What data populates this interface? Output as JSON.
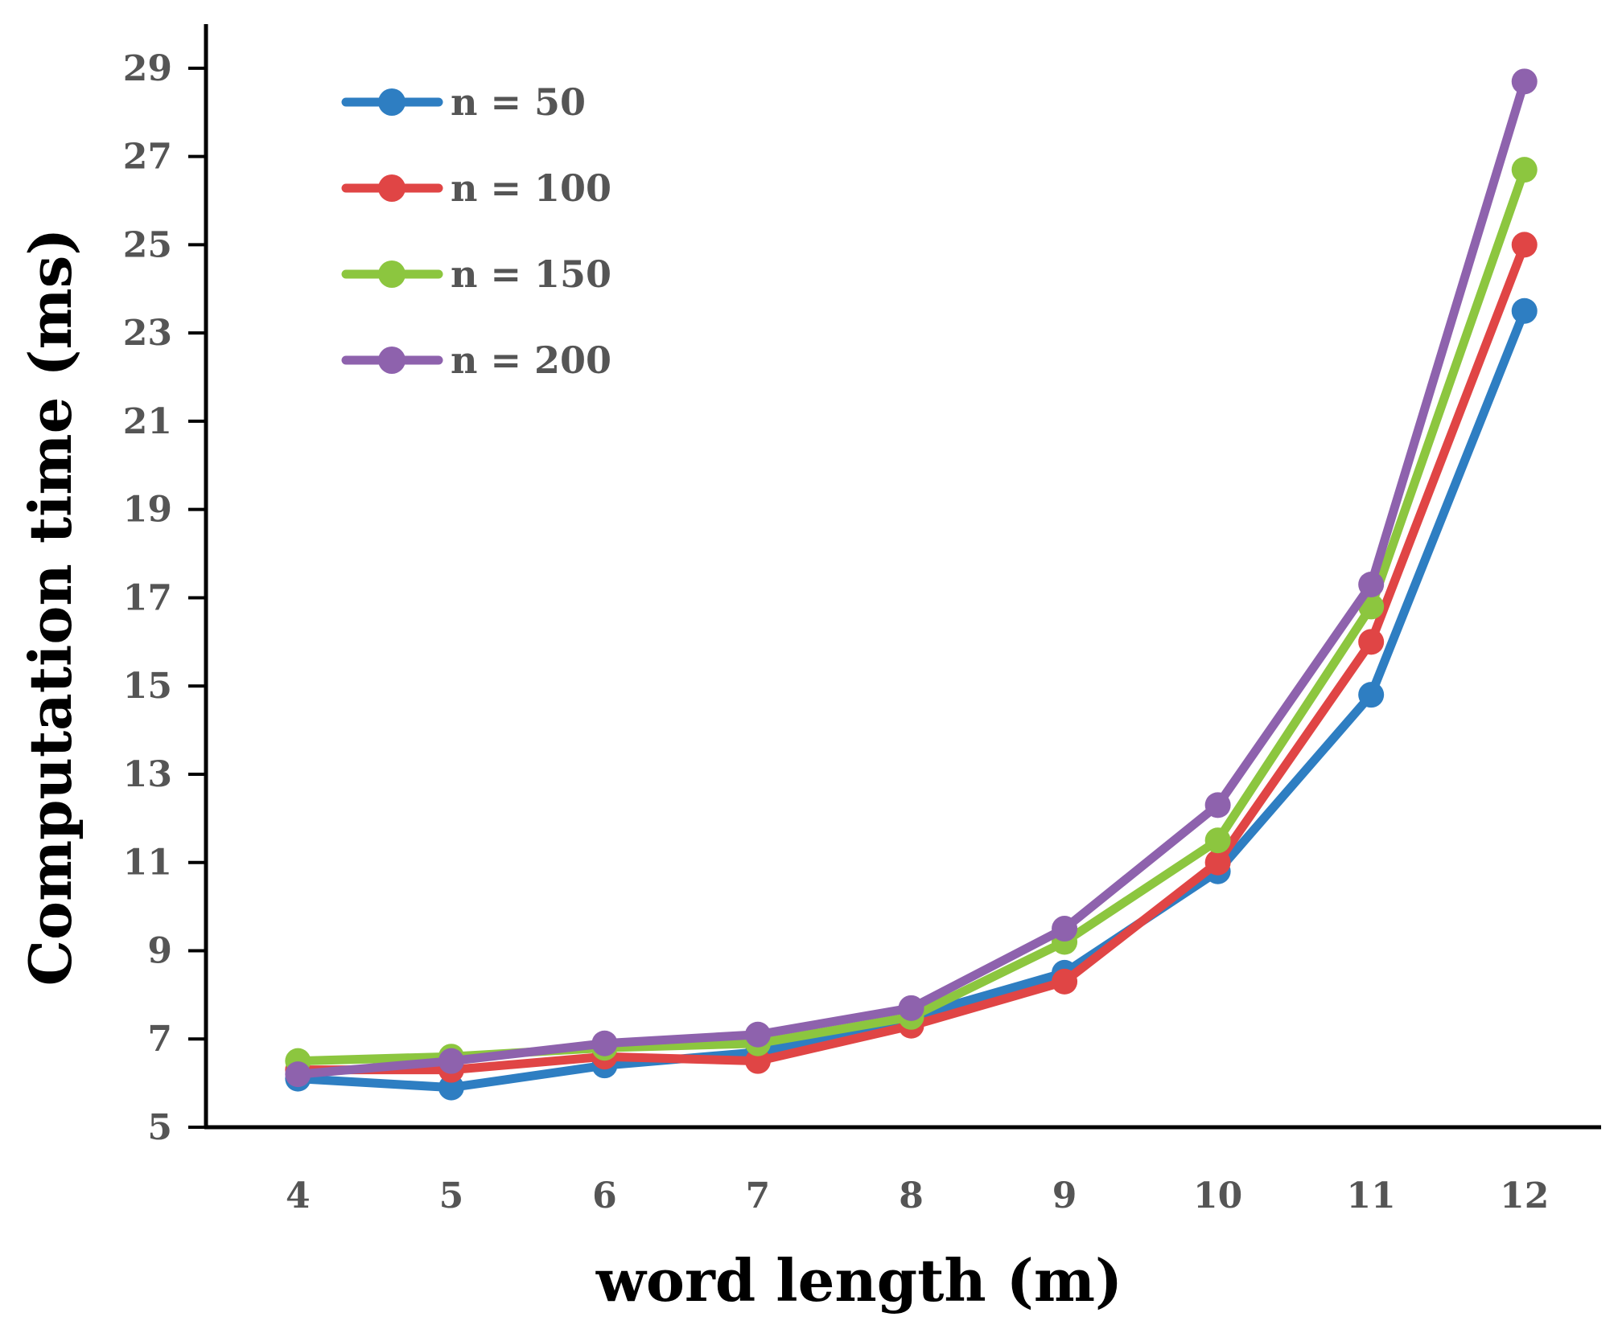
{
  "chart_data": {
    "type": "line",
    "title": "",
    "xlabel": "word length (m)",
    "ylabel": "Computation time (ms)",
    "x": [
      4,
      5,
      6,
      7,
      8,
      9,
      10,
      11,
      12
    ],
    "xlim": [
      3.4,
      12.5
    ],
    "ylim": [
      5,
      30
    ],
    "yticks": [
      5,
      7,
      9,
      11,
      13,
      15,
      17,
      19,
      21,
      23,
      25,
      27,
      29
    ],
    "xticks": [
      4,
      5,
      6,
      7,
      8,
      9,
      10,
      11,
      12
    ],
    "grid": false,
    "legend_position": "top-left",
    "series": [
      {
        "name": "n = 50",
        "color": "#2E7EC2",
        "values": [
          6.1,
          5.9,
          6.4,
          6.7,
          7.5,
          8.5,
          10.8,
          14.8,
          23.5
        ]
      },
      {
        "name": "n = 100",
        "color": "#E04545",
        "values": [
          6.3,
          6.3,
          6.6,
          6.5,
          7.3,
          8.3,
          11.0,
          16.0,
          25.0
        ]
      },
      {
        "name": "n = 150",
        "color": "#8CC63F",
        "values": [
          6.5,
          6.6,
          6.8,
          6.9,
          7.5,
          9.2,
          11.5,
          16.8,
          26.7
        ]
      },
      {
        "name": "n = 200",
        "color": "#8E62AD",
        "values": [
          6.2,
          6.5,
          6.9,
          7.1,
          7.7,
          9.5,
          12.3,
          17.3,
          28.7
        ]
      }
    ]
  }
}
